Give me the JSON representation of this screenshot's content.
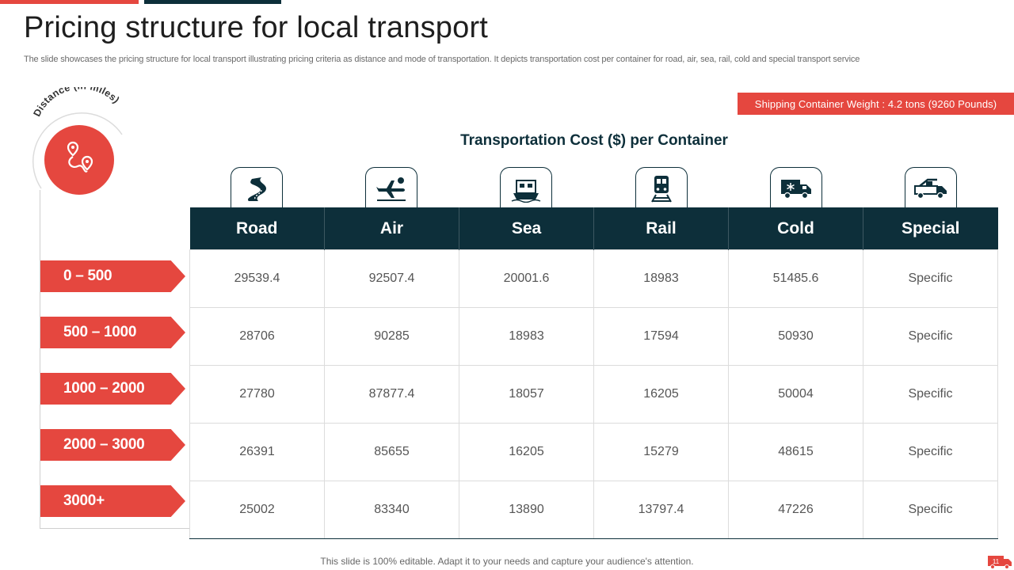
{
  "slide": {
    "title": "Pricing structure for local transport",
    "subtitle": "The slide showcases the pricing structure for local transport illustrating pricing criteria as distance and mode of transportation. It depicts transportation cost per container for road, air, sea, rail, cold and special transport service",
    "weight_badge": "Shipping Container Weight : 4.2 tons (9260 Pounds)",
    "distance_label": "Distance (in miles)",
    "table_title": "Transportation Cost ($) per Container",
    "footer": "This slide is 100% editable. Adapt it to your needs and capture your audience's attention.",
    "page_number": "11"
  },
  "columns": [
    {
      "label": "Road",
      "icon": "road-icon"
    },
    {
      "label": "Air",
      "icon": "airplane-icon"
    },
    {
      "label": "Sea",
      "icon": "ship-icon"
    },
    {
      "label": "Rail",
      "icon": "train-icon"
    },
    {
      "label": "Cold",
      "icon": "refrigerated-truck-icon"
    },
    {
      "label": "Special",
      "icon": "special-truck-icon"
    }
  ],
  "rows": [
    {
      "range": "0 – 500",
      "values": [
        "29539.4",
        "92507.4",
        "20001.6",
        "18983",
        "51485.6",
        "Specific"
      ]
    },
    {
      "range": "500 – 1000",
      "values": [
        "28706",
        "90285",
        "18983",
        "17594",
        "50930",
        "Specific"
      ]
    },
    {
      "range": "1000 – 2000",
      "values": [
        "27780",
        "87877.4",
        "18057",
        "16205",
        "50004",
        "Specific"
      ]
    },
    {
      "range": "2000 – 3000",
      "values": [
        "26391",
        "85655",
        "16205",
        "15279",
        "48615",
        "Specific"
      ]
    },
    {
      "range": "3000+",
      "values": [
        "25002",
        "83340",
        "13890",
        "13797.4",
        "47226",
        "Specific"
      ]
    }
  ],
  "colors": {
    "accent": "#e5473f",
    "dark": "#0d2f3a"
  }
}
